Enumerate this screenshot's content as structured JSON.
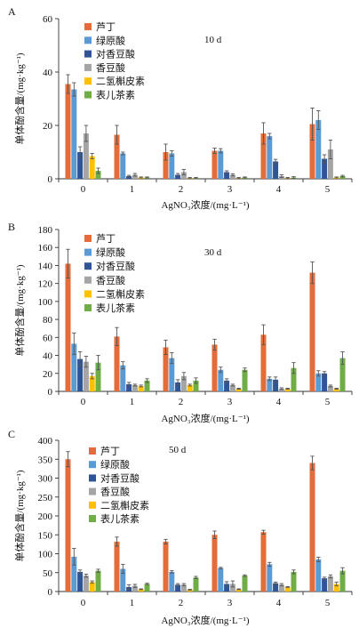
{
  "chart_data": [
    {
      "panel": "A",
      "type": "bar",
      "annotation": "10 d",
      "categories": [
        "0",
        "1",
        "2",
        "3",
        "4",
        "5"
      ],
      "xlabel": "AgNO₃浓度/(mg·L⁻¹)",
      "ylabel": "单体酚含量/(mg·kg⁻¹)",
      "ylim": [
        0,
        60
      ],
      "yticks": [
        0,
        20,
        40,
        60
      ],
      "grid": false,
      "legend_position": "top-left",
      "series": [
        {
          "name": "芦丁",
          "color": "#E46C3A",
          "values": [
            35.5,
            16.5,
            10,
            10.5,
            17,
            20.5
          ],
          "errors": [
            3.5,
            3.5,
            3,
            1,
            4,
            6
          ]
        },
        {
          "name": "绿原酸",
          "color": "#5B9BD5",
          "values": [
            33.5,
            9.5,
            9.5,
            10.5,
            16,
            22
          ],
          "errors": [
            2.5,
            0.5,
            1,
            0.8,
            1,
            3.5
          ]
        },
        {
          "name": "对香豆酸",
          "color": "#2F5597",
          "values": [
            10,
            1,
            1.5,
            2.5,
            6.5,
            7.5
          ],
          "errors": [
            2,
            0.3,
            0.5,
            0.5,
            0.8,
            1.5
          ]
        },
        {
          "name": "香豆酸",
          "color": "#A5A5A5",
          "values": [
            17,
            1.5,
            2.5,
            1.5,
            1,
            11
          ],
          "errors": [
            3,
            0.5,
            1,
            0.4,
            0.5,
            3.5
          ]
        },
        {
          "name": "二氢槲皮素",
          "color": "#FFC000",
          "values": [
            8.5,
            0.5,
            0.3,
            0.3,
            0.3,
            0.5
          ],
          "errors": [
            1,
            0.2,
            0.2,
            0.2,
            0.2,
            0.2
          ]
        },
        {
          "name": "表儿茶素",
          "color": "#70AD47",
          "values": [
            3,
            0.5,
            0.3,
            0.5,
            0.5,
            1
          ],
          "errors": [
            1,
            0.2,
            0.2,
            0.2,
            0.3,
            0.3
          ]
        }
      ]
    },
    {
      "panel": "B",
      "type": "bar",
      "annotation": "30 d",
      "categories": [
        "0",
        "1",
        "2",
        "3",
        "4",
        "5"
      ],
      "xlabel": "AgNO₃浓度/(mg·L⁻¹)",
      "ylabel": "单体酚含量/(mg·kg⁻¹)",
      "ylim": [
        0,
        180
      ],
      "yticks": [
        0,
        20,
        40,
        60,
        80,
        100,
        120,
        140,
        160,
        180
      ],
      "grid": false,
      "legend_position": "top-left",
      "series": [
        {
          "name": "芦丁",
          "color": "#E46C3A",
          "values": [
            142,
            61,
            49,
            52,
            63,
            132
          ],
          "errors": [
            16,
            10,
            8,
            6,
            11,
            12
          ]
        },
        {
          "name": "绿原酸",
          "color": "#5B9BD5",
          "values": [
            53,
            29,
            37,
            24,
            14,
            20
          ],
          "errors": [
            12,
            4,
            6,
            3,
            2,
            3
          ]
        },
        {
          "name": "对香豆酸",
          "color": "#2F5597",
          "values": [
            36,
            8,
            10,
            12,
            13,
            20
          ],
          "errors": [
            8,
            2,
            3,
            2,
            3,
            2
          ]
        },
        {
          "name": "香豆酸",
          "color": "#A5A5A5",
          "values": [
            33,
            7,
            17,
            7,
            3,
            6
          ],
          "errors": [
            6,
            1,
            4,
            1,
            1,
            1
          ]
        },
        {
          "name": "二氢槲皮素",
          "color": "#FFC000",
          "values": [
            17,
            6,
            7,
            3,
            3,
            3
          ],
          "errors": [
            3,
            1,
            1,
            0.5,
            0.5,
            0.5
          ]
        },
        {
          "name": "表儿茶素",
          "color": "#70AD47",
          "values": [
            32,
            12,
            12,
            24,
            26,
            37
          ],
          "errors": [
            8,
            2,
            3,
            2,
            6,
            7
          ]
        }
      ]
    },
    {
      "panel": "C",
      "type": "bar",
      "annotation": "50 d",
      "categories": [
        "0",
        "1",
        "2",
        "3",
        "4",
        "5"
      ],
      "xlabel": "AgNO₃浓度/(mg·L⁻¹)",
      "ylabel": "单体酚含量/(mg·kg⁻¹)",
      "ylim": [
        0,
        400
      ],
      "yticks": [
        0,
        50,
        100,
        150,
        200,
        250,
        300,
        350,
        400
      ],
      "grid": false,
      "legend_position": "top-left",
      "series": [
        {
          "name": "芦丁",
          "color": "#E46C3A",
          "values": [
            350,
            132,
            132,
            150,
            157,
            340
          ],
          "errors": [
            20,
            12,
            6,
            10,
            5,
            18
          ]
        },
        {
          "name": "绿原酸",
          "color": "#5B9BD5",
          "values": [
            92,
            60,
            52,
            62,
            72,
            85
          ],
          "errors": [
            22,
            12,
            3,
            2,
            5,
            6
          ]
        },
        {
          "name": "对香豆酸",
          "color": "#2F5597",
          "values": [
            52,
            12,
            18,
            20,
            22,
            35
          ],
          "errors": [
            5,
            6,
            3,
            6,
            3,
            3
          ]
        },
        {
          "name": "香豆酸",
          "color": "#A5A5A5",
          "values": [
            42,
            15,
            18,
            20,
            18,
            40
          ],
          "errors": [
            4,
            4,
            3,
            8,
            3,
            4
          ]
        },
        {
          "name": "二氢槲皮素",
          "color": "#FFC000",
          "values": [
            25,
            6,
            5,
            6,
            12,
            20
          ],
          "errors": [
            3,
            1,
            1,
            1,
            1,
            5
          ]
        },
        {
          "name": "表儿茶素",
          "color": "#70AD47",
          "values": [
            55,
            20,
            37,
            42,
            52,
            55
          ],
          "errors": [
            4,
            2,
            3,
            2,
            5,
            8
          ]
        }
      ]
    }
  ]
}
